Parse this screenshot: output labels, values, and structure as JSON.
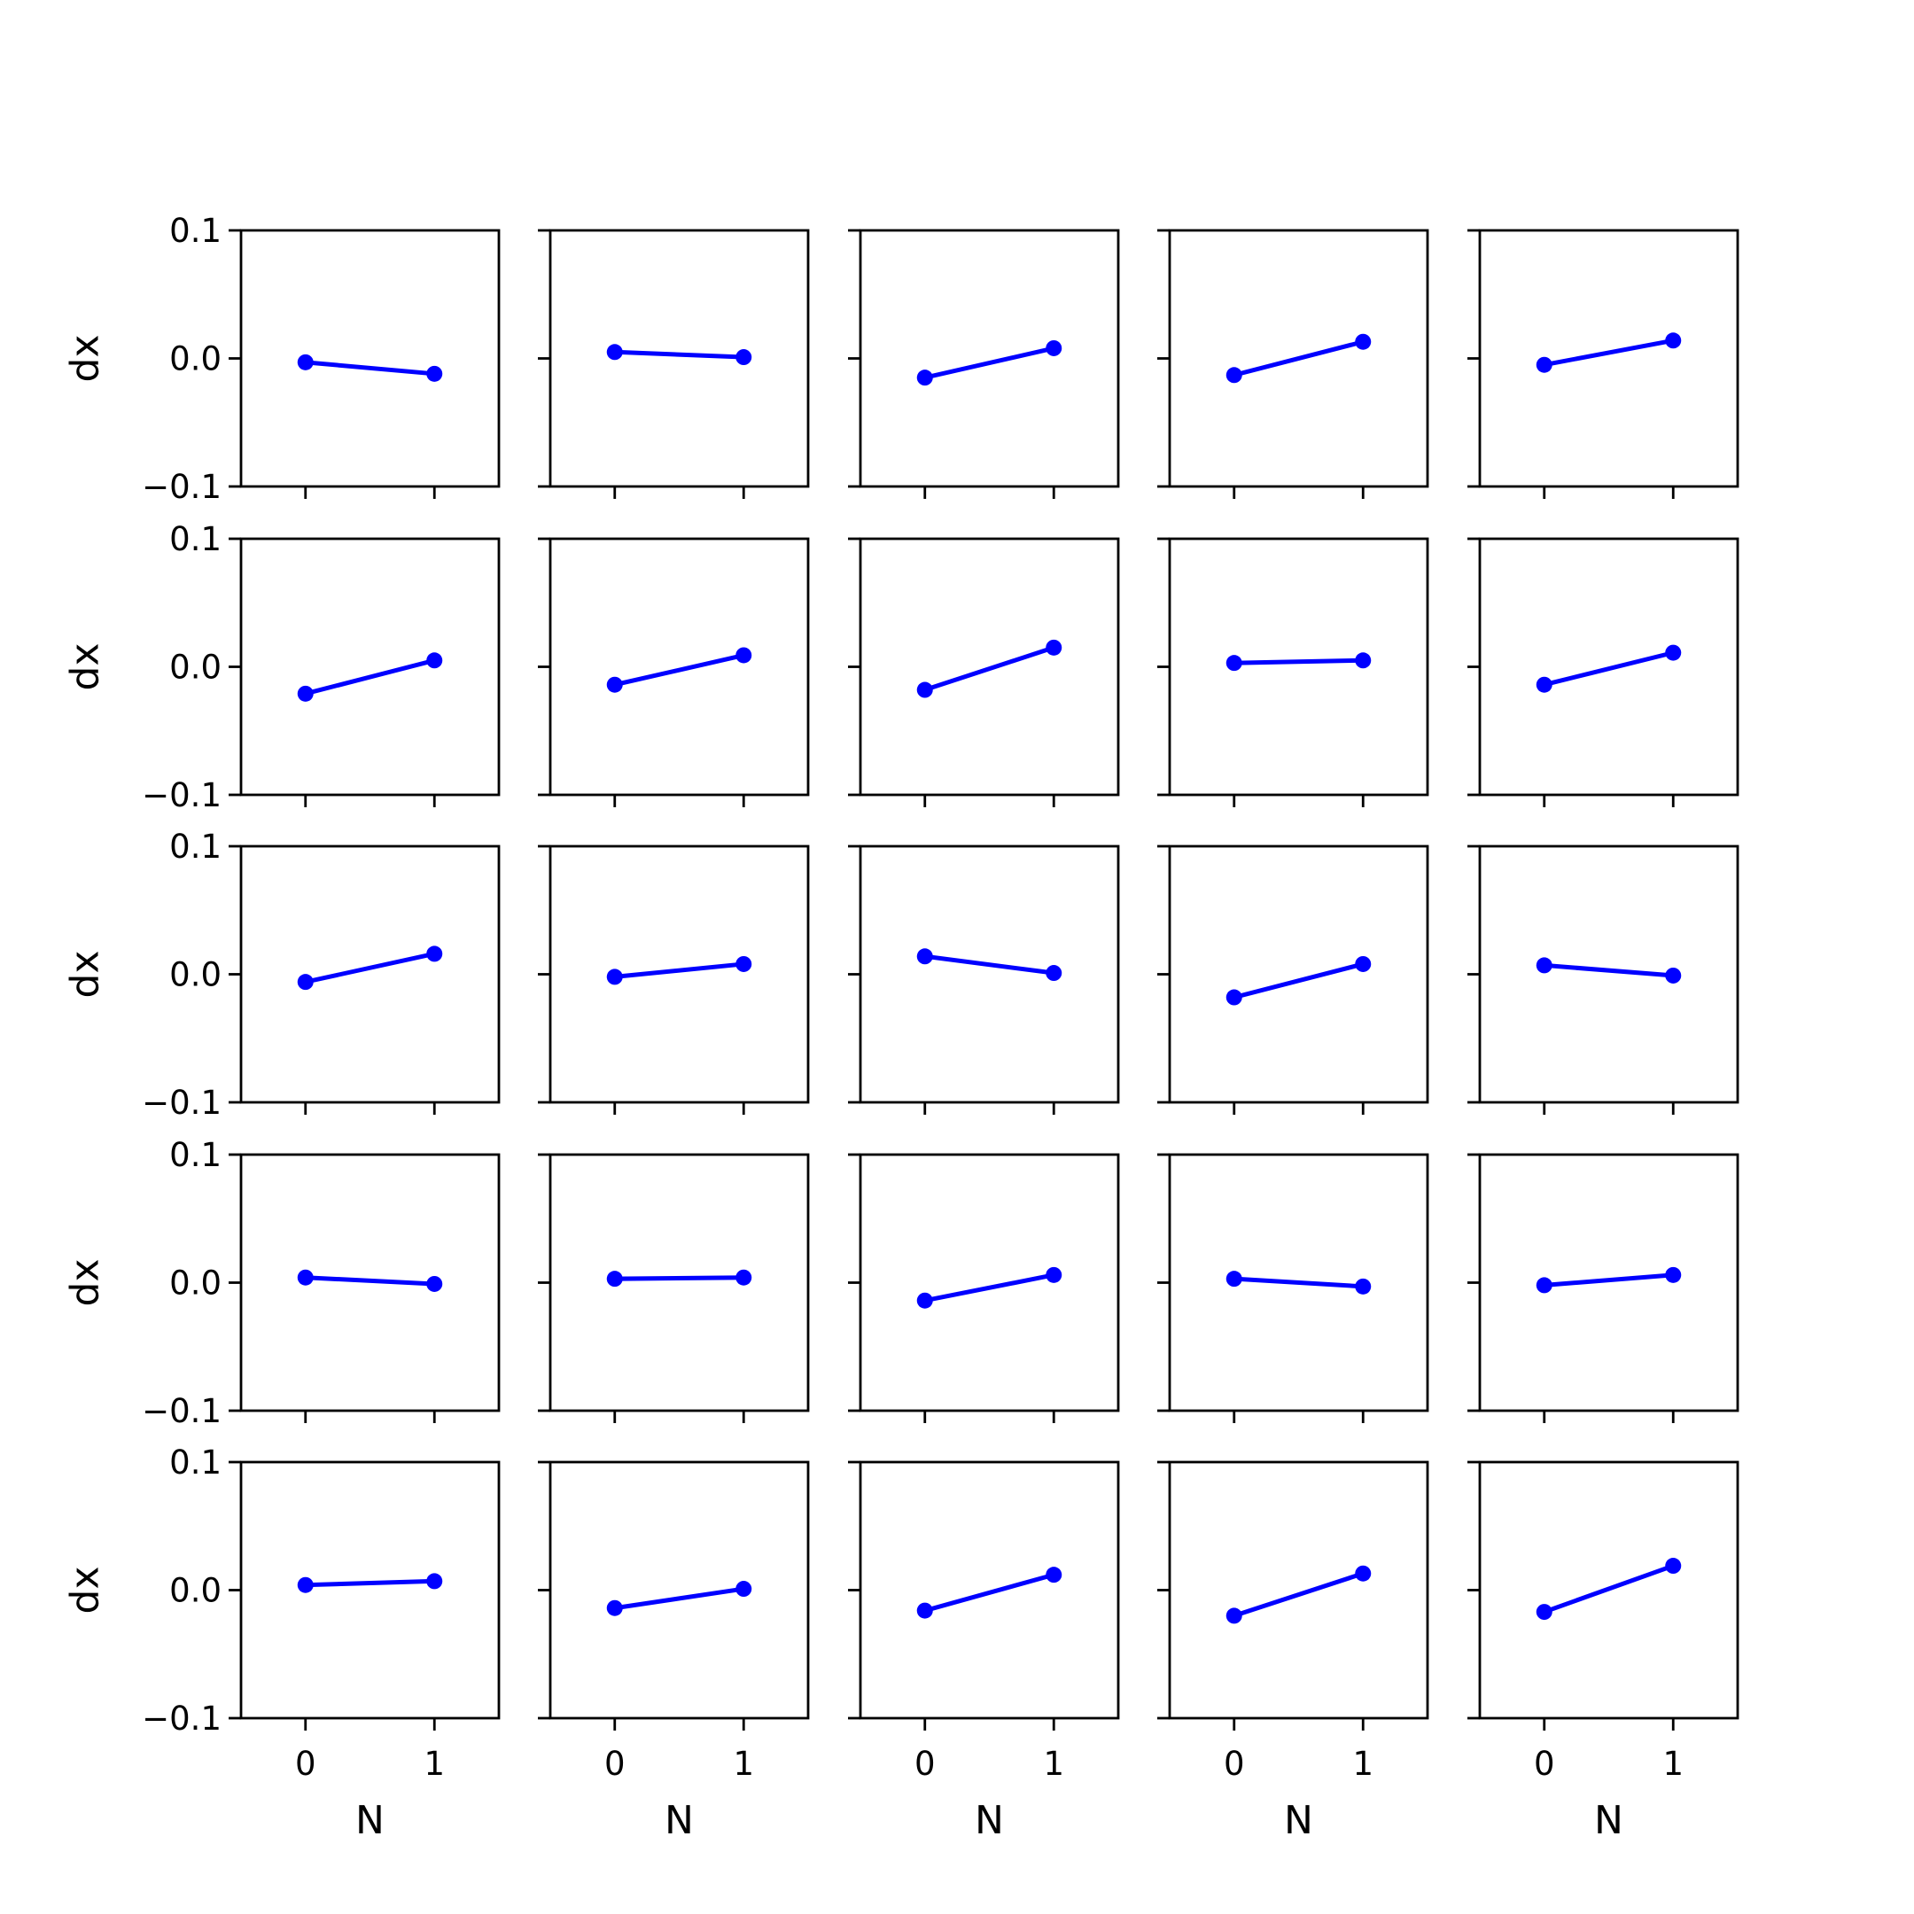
{
  "chart_data": {
    "type": "line",
    "layout": "5x5 grid of small multiples, shared axes",
    "xlabel": "N",
    "ylabel": "dx",
    "x": [
      0,
      1
    ],
    "xticks": [
      "0",
      "1"
    ],
    "xlim": [
      -0.5,
      1.5
    ],
    "ylim": [
      -0.1,
      0.1
    ],
    "yticks": [
      "0.1",
      "0.0",
      "−0.1"
    ],
    "series_color": "#0000ff",
    "marker": "circle",
    "grid": false,
    "legend": "none",
    "panels": [
      {
        "values": [
          -0.003,
          -0.012
        ]
      },
      {
        "values": [
          0.005,
          0.001
        ]
      },
      {
        "values": [
          -0.015,
          0.008
        ]
      },
      {
        "values": [
          -0.013,
          0.013
        ]
      },
      {
        "values": [
          -0.005,
          0.014
        ]
      },
      {
        "values": [
          -0.021,
          0.005
        ]
      },
      {
        "values": [
          -0.014,
          0.009
        ]
      },
      {
        "values": [
          -0.018,
          0.015
        ]
      },
      {
        "values": [
          0.003,
          0.005
        ]
      },
      {
        "values": [
          -0.014,
          0.011
        ]
      },
      {
        "values": [
          -0.006,
          0.016
        ]
      },
      {
        "values": [
          -0.002,
          0.008
        ]
      },
      {
        "values": [
          0.014,
          0.001
        ]
      },
      {
        "values": [
          -0.018,
          0.008
        ]
      },
      {
        "values": [
          0.007,
          -0.001
        ]
      },
      {
        "values": [
          0.004,
          -0.001
        ]
      },
      {
        "values": [
          0.003,
          0.004
        ]
      },
      {
        "values": [
          -0.014,
          0.006
        ]
      },
      {
        "values": [
          0.003,
          -0.003
        ]
      },
      {
        "values": [
          -0.002,
          0.006
        ]
      },
      {
        "values": [
          0.004,
          0.007
        ]
      },
      {
        "values": [
          -0.014,
          0.001
        ]
      },
      {
        "values": [
          -0.016,
          0.012
        ]
      },
      {
        "values": [
          -0.02,
          0.013
        ]
      },
      {
        "values": [
          -0.017,
          0.019
        ]
      }
    ]
  }
}
